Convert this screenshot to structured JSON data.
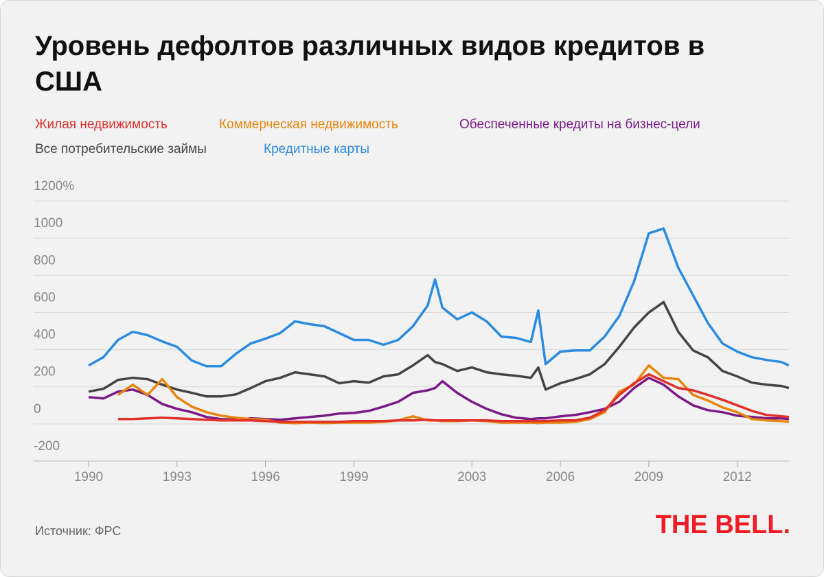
{
  "chart_data": {
    "type": "line",
    "title": "Уровень дефолтов различных видов кредитов в США",
    "source": "Источник: ФРС",
    "logo": "THE BELL.",
    "x": [
      1990,
      1990.5,
      1991,
      1991.5,
      1992,
      1992.5,
      1993,
      1993.5,
      1994,
      1994.5,
      1995,
      1995.5,
      1996,
      1996.5,
      1997,
      1997.5,
      1998,
      1998.5,
      1999,
      1999.5,
      2000,
      2000.5,
      2001,
      2001.5,
      2001.75,
      2002,
      2002.5,
      2003,
      2003.5,
      2004,
      2004.5,
      2005,
      2005.25,
      2005.5,
      2006,
      2006.5,
      2007,
      2007.5,
      2008,
      2008.5,
      2009,
      2009.5,
      2010,
      2010.5,
      2011,
      2011.5,
      2012,
      2012.5,
      2013,
      2013.5,
      2013.75
    ],
    "series": [
      {
        "name": "Жилая недвижимость",
        "color": "#e0322b",
        "values": [
          null,
          null,
          26,
          26,
          30,
          33,
          30,
          26,
          22,
          19,
          19,
          19,
          15,
          11,
          11,
          11,
          11,
          11,
          15,
          15,
          15,
          19,
          19,
          22,
          19,
          19,
          19,
          19,
          19,
          15,
          15,
          15,
          15,
          15,
          19,
          19,
          33,
          74,
          156,
          219,
          267,
          230,
          193,
          181,
          156,
          130,
          100,
          70,
          48,
          41,
          37
        ]
      },
      {
        "name": "Коммерческая недвижимость",
        "color": "#e8850c",
        "values": [
          null,
          null,
          156,
          211,
          156,
          241,
          144,
          93,
          63,
          44,
          33,
          26,
          22,
          7,
          4,
          7,
          4,
          7,
          7,
          7,
          11,
          19,
          41,
          19,
          19,
          15,
          15,
          19,
          15,
          7,
          7,
          7,
          4,
          7,
          7,
          11,
          26,
          63,
          174,
          211,
          315,
          248,
          241,
          156,
          126,
          89,
          63,
          26,
          19,
          15,
          11
        ]
      },
      {
        "name": "Обеспеченные кредиты на бизнес-цели",
        "color": "#7b1a86",
        "values": [
          144,
          137,
          174,
          185,
          156,
          107,
          81,
          63,
          37,
          26,
          22,
          30,
          26,
          22,
          30,
          37,
          44,
          56,
          59,
          70,
          93,
          119,
          167,
          181,
          193,
          230,
          167,
          119,
          81,
          52,
          33,
          26,
          30,
          30,
          41,
          48,
          63,
          81,
          119,
          193,
          248,
          211,
          148,
          100,
          74,
          63,
          44,
          37,
          30,
          30,
          26
        ]
      },
      {
        "name": "Все потребительские займы",
        "color": "#444444",
        "values": [
          174,
          189,
          237,
          248,
          241,
          211,
          185,
          167,
          148,
          148,
          159,
          193,
          230,
          248,
          278,
          267,
          256,
          219,
          230,
          222,
          256,
          267,
          315,
          370,
          333,
          322,
          285,
          304,
          278,
          267,
          259,
          248,
          304,
          185,
          219,
          241,
          267,
          322,
          415,
          519,
          600,
          656,
          496,
          396,
          359,
          285,
          256,
          222,
          211,
          204,
          193
        ]
      },
      {
        "name": "Кредитные карты",
        "color": "#2a8be0",
        "values": [
          315,
          359,
          452,
          496,
          478,
          444,
          415,
          341,
          311,
          311,
          378,
          433,
          459,
          489,
          552,
          537,
          526,
          489,
          452,
          452,
          426,
          452,
          526,
          637,
          778,
          626,
          563,
          600,
          552,
          470,
          463,
          441,
          611,
          322,
          389,
          396,
          396,
          470,
          581,
          767,
          1026,
          1052,
          841,
          693,
          544,
          433,
          389,
          359,
          344,
          333,
          315
        ]
      }
    ],
    "xlim": [
      1990,
      2013.73
    ],
    "xticks": [
      1990,
      1993,
      1996,
      1999,
      2003,
      2006,
      2009,
      2012
    ],
    "ylim": [
      -200,
      1200
    ],
    "yticks": [
      -200,
      0,
      200,
      400,
      600,
      800,
      1000,
      {
        "value": 1200,
        "label": "1200%"
      }
    ],
    "grid": true
  }
}
